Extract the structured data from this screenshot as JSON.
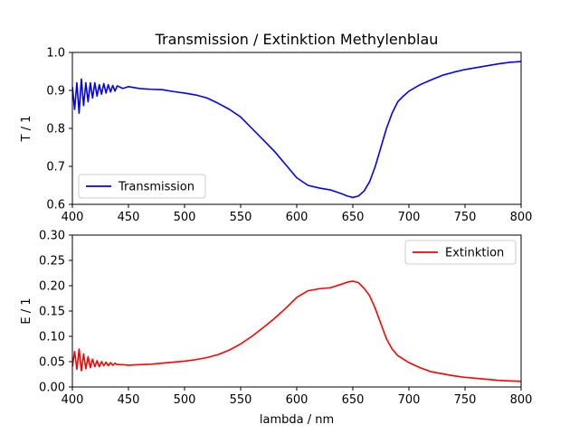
{
  "chart_data": [
    {
      "type": "line",
      "title": "Transmission / Extinktion Methylenblau",
      "xlabel": "",
      "ylabel": "T / 1",
      "xlim": [
        400,
        800
      ],
      "ylim": [
        0.6,
        1.0
      ],
      "xticks": [
        "400",
        "450",
        "500",
        "550",
        "600",
        "650",
        "700",
        "750",
        "800"
      ],
      "yticks": [
        "0.6",
        "0.7",
        "0.8",
        "0.9",
        "1.0"
      ],
      "grid": false,
      "legend_position": "lower-left",
      "series": [
        {
          "name": "Transmission",
          "color": "#0000ff",
          "x": [
            400,
            402,
            404,
            406,
            408,
            410,
            412,
            414,
            416,
            418,
            420,
            422,
            424,
            426,
            428,
            430,
            432,
            434,
            436,
            438,
            440,
            445,
            450,
            460,
            470,
            480,
            490,
            500,
            510,
            520,
            530,
            540,
            550,
            560,
            570,
            580,
            590,
            600,
            610,
            620,
            630,
            640,
            645,
            650,
            655,
            660,
            665,
            670,
            675,
            680,
            685,
            690,
            695,
            700,
            710,
            720,
            730,
            740,
            750,
            760,
            770,
            780,
            790,
            800
          ],
          "y": [
            0.91,
            0.85,
            0.92,
            0.84,
            0.93,
            0.86,
            0.92,
            0.87,
            0.92,
            0.88,
            0.92,
            0.885,
            0.915,
            0.89,
            0.918,
            0.893,
            0.915,
            0.896,
            0.913,
            0.898,
            0.912,
            0.905,
            0.91,
            0.905,
            0.903,
            0.902,
            0.897,
            0.893,
            0.888,
            0.88,
            0.866,
            0.85,
            0.83,
            0.8,
            0.77,
            0.74,
            0.705,
            0.67,
            0.65,
            0.643,
            0.638,
            0.628,
            0.622,
            0.618,
            0.622,
            0.635,
            0.66,
            0.7,
            0.75,
            0.8,
            0.84,
            0.87,
            0.885,
            0.898,
            0.915,
            0.928,
            0.94,
            0.948,
            0.955,
            0.96,
            0.965,
            0.97,
            0.974,
            0.976
          ]
        }
      ]
    },
    {
      "type": "line",
      "title": "",
      "xlabel": "lambda / nm",
      "ylabel": "E / 1",
      "xlim": [
        400,
        800
      ],
      "ylim": [
        0.0,
        0.3
      ],
      "xticks": [
        "400",
        "450",
        "500",
        "550",
        "600",
        "650",
        "700",
        "750",
        "800"
      ],
      "yticks": [
        "0.00",
        "0.05",
        "0.10",
        "0.15",
        "0.20",
        "0.25",
        "0.30"
      ],
      "grid": false,
      "legend_position": "upper-right",
      "series": [
        {
          "name": "Extinktion",
          "color": "#ff0000",
          "x": [
            400,
            402,
            404,
            406,
            408,
            410,
            412,
            414,
            416,
            418,
            420,
            422,
            424,
            426,
            428,
            430,
            432,
            434,
            436,
            438,
            440,
            445,
            450,
            460,
            470,
            480,
            490,
            500,
            510,
            520,
            530,
            540,
            550,
            560,
            570,
            580,
            590,
            600,
            610,
            620,
            630,
            640,
            645,
            650,
            655,
            660,
            665,
            670,
            675,
            680,
            685,
            690,
            695,
            700,
            710,
            720,
            730,
            740,
            750,
            760,
            770,
            780,
            790,
            800
          ],
          "y": [
            0.04,
            0.07,
            0.035,
            0.075,
            0.032,
            0.065,
            0.036,
            0.06,
            0.038,
            0.055,
            0.04,
            0.052,
            0.04,
            0.05,
            0.042,
            0.049,
            0.042,
            0.048,
            0.043,
            0.047,
            0.044,
            0.044,
            0.043,
            0.044,
            0.045,
            0.047,
            0.049,
            0.051,
            0.054,
            0.058,
            0.064,
            0.073,
            0.085,
            0.1,
            0.117,
            0.135,
            0.155,
            0.177,
            0.19,
            0.194,
            0.196,
            0.203,
            0.207,
            0.209,
            0.206,
            0.195,
            0.18,
            0.155,
            0.125,
            0.095,
            0.075,
            0.062,
            0.055,
            0.048,
            0.038,
            0.03,
            0.026,
            0.022,
            0.019,
            0.017,
            0.015,
            0.013,
            0.012,
            0.011
          ]
        }
      ]
    }
  ]
}
